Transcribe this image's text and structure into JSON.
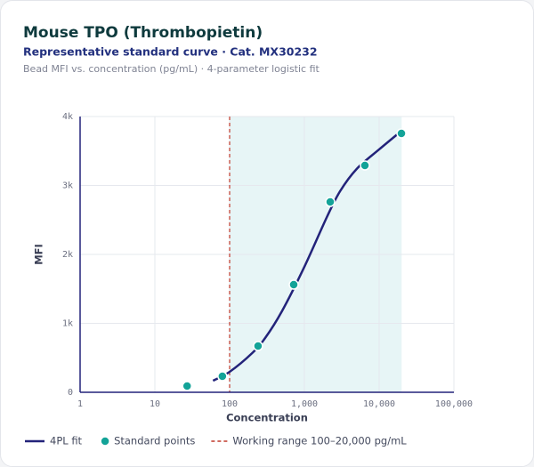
{
  "chart_data": {
    "type": "scatter",
    "title": "Mouse TPO (Thrombopietin)",
    "subtitle": "Representative standard curve · Cat. MX30232",
    "description": "Bead MFI vs. concentration (pg/mL) · 4-parameter logistic fit",
    "x_label": "Concentration",
    "y_label": "MFI",
    "xscale": "log",
    "grid": true,
    "xlim": [
      1,
      100000
    ],
    "xticks": [
      1,
      10,
      100,
      {
        "value": 1000,
        "label": "1,000"
      },
      {
        "value": 10000,
        "label": "10,000"
      },
      {
        "value": 100000,
        "label": "100,000"
      }
    ],
    "ylim": [
      0,
      4000
    ],
    "yticks": [
      0,
      {
        "value": 1000,
        "label": "1k"
      },
      {
        "value": 2000,
        "label": "2k"
      },
      {
        "value": 3000,
        "label": "3k"
      },
      {
        "value": 4000,
        "label": "4k"
      }
    ],
    "shaded_range": {
      "label": "Working range 100–20,000 pg/mL",
      "x": [
        100,
        20000
      ],
      "color": "#c0392b",
      "fill": "#e7f5f6"
    },
    "series": [
      {
        "name": "4PL fit",
        "style": "line",
        "color": "#23237a",
        "x": [
          60,
          100,
          200,
          300,
          500,
          1000,
          2000,
          3000,
          5000,
          10000,
          20000
        ],
        "values": [
          168,
          297,
          568,
          790,
          1174,
          1820,
          2542,
          2916,
          3239,
          3523,
          3794
        ]
      },
      {
        "name": "Standard points",
        "style": "markers",
        "color": "#13a398",
        "x": [
          27,
          80,
          240,
          720,
          2215,
          6450,
          19860
        ],
        "values": [
          90,
          232,
          671,
          1561,
          2761,
          3290,
          3755
        ]
      }
    ]
  }
}
